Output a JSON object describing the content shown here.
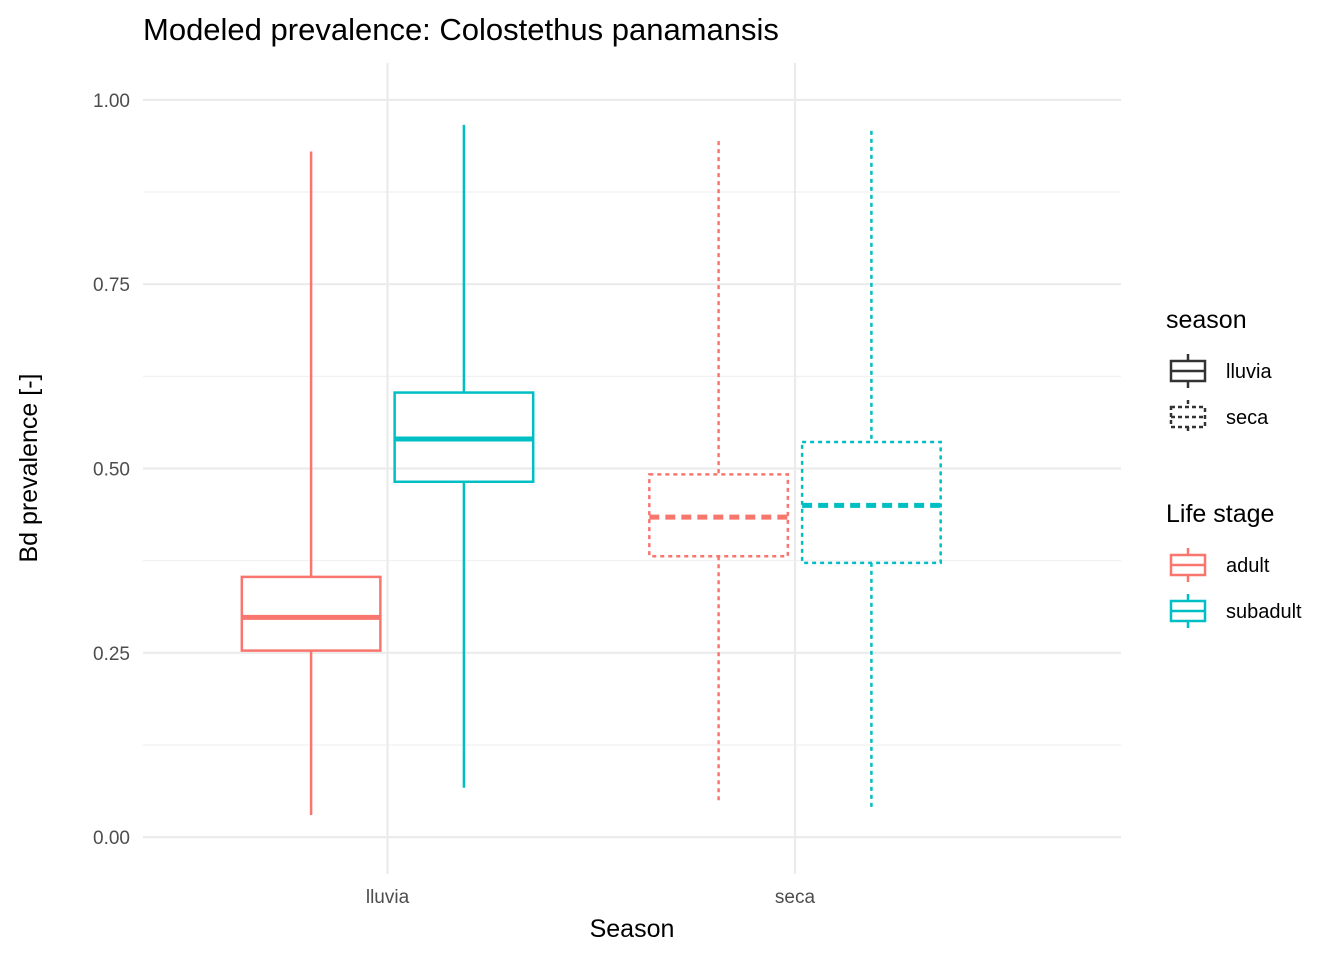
{
  "chart_data": {
    "type": "boxplot",
    "title": "Modeled prevalence: Colostethus panamansis",
    "xlabel": "Season",
    "ylabel": "Bd prevalence [-]",
    "categories": [
      "lluvia",
      "seca"
    ],
    "ylim": [
      -0.05,
      1.05
    ],
    "yticks": [
      0.0,
      0.25,
      0.5,
      0.75,
      1.0
    ],
    "ytick_labels": [
      "0.00",
      "0.25",
      "0.50",
      "0.75",
      "1.00"
    ],
    "grid": true,
    "boxes": [
      {
        "season": "lluvia",
        "stage": "adult",
        "min": 0.03,
        "q1": 0.253,
        "median": 0.298,
        "q3": 0.353,
        "max": 0.93
      },
      {
        "season": "lluvia",
        "stage": "subadult",
        "min": 0.067,
        "q1": 0.482,
        "median": 0.54,
        "q3": 0.603,
        "max": 0.966
      },
      {
        "season": "seca",
        "stage": "adult",
        "min": 0.048,
        "q1": 0.381,
        "median": 0.434,
        "q3": 0.492,
        "max": 0.944
      },
      {
        "season": "seca",
        "stage": "subadult",
        "min": 0.04,
        "q1": 0.372,
        "median": 0.45,
        "q3": 0.536,
        "max": 0.958
      }
    ],
    "legend_position": "right",
    "legends": [
      {
        "title": "season",
        "entries": [
          {
            "label": "lluvia",
            "linetype": "solid"
          },
          {
            "label": "seca",
            "linetype": "dotted"
          }
        ]
      },
      {
        "title": "Life stage",
        "entries": [
          {
            "label": "adult",
            "color": "#F8766D"
          },
          {
            "label": "subadult",
            "color": "#00BFC4"
          }
        ]
      }
    ]
  }
}
